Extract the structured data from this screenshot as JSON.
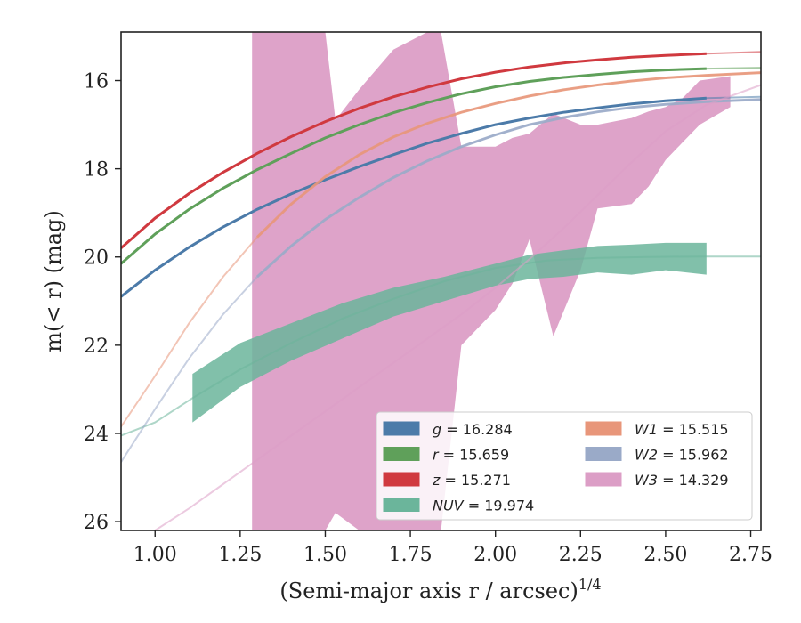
{
  "chart_data": {
    "type": "line",
    "xlabel": "(Semi-major axis r / arcsec)",
    "xlabel_superscript": "1/4",
    "ylabel": "m(< r) (mag)",
    "xlim": [
      0.9,
      2.78
    ],
    "ylim": [
      26.2,
      14.9
    ],
    "y_inverted": true,
    "xticks": [
      "1.00",
      "1.25",
      "1.50",
      "1.75",
      "2.00",
      "2.25",
      "2.50",
      "2.75"
    ],
    "xtick_values": [
      1.0,
      1.25,
      1.5,
      1.75,
      2.0,
      2.25,
      2.5,
      2.75
    ],
    "yticks": [
      "16",
      "18",
      "20",
      "22",
      "24",
      "26"
    ],
    "ytick_values": [
      16,
      18,
      20,
      22,
      24,
      26
    ],
    "grid": false,
    "legend_position": "lower-right",
    "series": [
      {
        "band": "g",
        "legend_value": "16.284",
        "color": "#4c7ba9",
        "x": [
          0.9,
          1.0,
          1.1,
          1.2,
          1.3,
          1.4,
          1.5,
          1.6,
          1.7,
          1.8,
          1.9,
          2.0,
          2.1,
          2.2,
          2.3,
          2.4,
          2.5,
          2.62,
          2.78
        ],
        "y": [
          20.9,
          20.3,
          19.78,
          19.32,
          18.92,
          18.57,
          18.25,
          17.95,
          17.68,
          17.42,
          17.2,
          17.0,
          16.85,
          16.72,
          16.62,
          16.53,
          16.46,
          16.4,
          16.37
        ],
        "measured_max_x": 2.62
      },
      {
        "band": "r",
        "legend_value": "15.659",
        "color": "#5fa05a",
        "x": [
          0.9,
          1.0,
          1.1,
          1.2,
          1.3,
          1.4,
          1.5,
          1.6,
          1.7,
          1.8,
          1.9,
          2.0,
          2.1,
          2.2,
          2.3,
          2.4,
          2.5,
          2.62,
          2.78
        ],
        "y": [
          20.15,
          19.48,
          18.92,
          18.44,
          18.02,
          17.65,
          17.3,
          17.0,
          16.73,
          16.5,
          16.3,
          16.14,
          16.02,
          15.93,
          15.86,
          15.8,
          15.76,
          15.73,
          15.71
        ],
        "measured_max_x": 2.62
      },
      {
        "band": "z",
        "legend_value": "15.271",
        "color": "#d0393f",
        "x": [
          0.9,
          1.0,
          1.1,
          1.2,
          1.3,
          1.4,
          1.5,
          1.6,
          1.7,
          1.8,
          1.9,
          2.0,
          2.1,
          2.2,
          2.3,
          2.4,
          2.5,
          2.62,
          2.78
        ],
        "y": [
          19.8,
          19.12,
          18.56,
          18.08,
          17.65,
          17.27,
          16.93,
          16.63,
          16.37,
          16.15,
          15.96,
          15.81,
          15.69,
          15.6,
          15.53,
          15.47,
          15.43,
          15.39,
          15.35
        ],
        "measured_max_x": 2.62
      },
      {
        "band": "NUV",
        "legend_value": "19.974",
        "color": "#6bb59b",
        "x": [
          0.9,
          1.0,
          1.11,
          1.25,
          1.4,
          1.55,
          1.7,
          1.85,
          2.0,
          2.15,
          2.3,
          2.45,
          2.62,
          2.78
        ],
        "y": [
          24.05,
          23.75,
          23.2,
          22.55,
          21.95,
          21.4,
          20.95,
          20.55,
          20.25,
          20.08,
          20.02,
          20.0,
          19.99,
          19.99
        ],
        "band_x": [
          1.11,
          1.25,
          1.4,
          1.55,
          1.7,
          1.85,
          2.0,
          2.1,
          2.2,
          2.3,
          2.4,
          2.5,
          2.62
        ],
        "band_lo": [
          23.75,
          22.95,
          22.35,
          21.85,
          21.35,
          21.0,
          20.65,
          20.5,
          20.45,
          20.35,
          20.4,
          20.3,
          20.4
        ],
        "band_hi": [
          22.65,
          21.95,
          21.5,
          21.05,
          20.7,
          20.45,
          20.15,
          19.95,
          19.85,
          19.75,
          19.72,
          19.68,
          19.68
        ],
        "measured_min_x": 1.11,
        "measured_max_x": 2.62
      },
      {
        "band": "W1",
        "legend_value": "15.515",
        "color": "#e8967a",
        "x": [
          0.9,
          1.0,
          1.1,
          1.2,
          1.3,
          1.4,
          1.5,
          1.6,
          1.7,
          1.8,
          1.9,
          2.0,
          2.1,
          2.2,
          2.3,
          2.4,
          2.5,
          2.62,
          2.78
        ],
        "y": [
          23.85,
          22.7,
          21.5,
          20.45,
          19.55,
          18.8,
          18.18,
          17.68,
          17.28,
          16.97,
          16.72,
          16.52,
          16.35,
          16.21,
          16.1,
          16.01,
          15.94,
          15.88,
          15.82
        ],
        "measured_min_x": 1.28,
        "measured_max_x": 2.78
      },
      {
        "band": "W2",
        "legend_value": "15.962",
        "color": "#9aaac8",
        "x": [
          0.9,
          1.0,
          1.1,
          1.2,
          1.3,
          1.4,
          1.5,
          1.6,
          1.7,
          1.8,
          1.9,
          2.0,
          2.1,
          2.2,
          2.3,
          2.4,
          2.5,
          2.62,
          2.78
        ],
        "y": [
          24.65,
          23.45,
          22.3,
          21.3,
          20.45,
          19.75,
          19.15,
          18.65,
          18.2,
          17.82,
          17.5,
          17.23,
          17.0,
          16.84,
          16.71,
          16.61,
          16.54,
          16.48,
          16.43
        ],
        "measured_min_x": 1.28,
        "measured_max_x": 2.78
      },
      {
        "band": "W3",
        "legend_value": "14.329",
        "color": "#dc9ec6",
        "x": [
          0.9,
          1.0,
          1.1,
          1.2,
          1.3,
          1.4,
          1.5,
          1.6,
          1.7,
          1.8,
          1.9,
          2.0,
          2.1,
          2.2,
          2.3,
          2.4,
          2.5,
          2.62,
          2.78
        ],
        "y": [
          26.4,
          26.2,
          25.7,
          25.15,
          24.6,
          24.05,
          23.5,
          22.95,
          22.4,
          21.85,
          21.3,
          20.7,
          20.05,
          19.35,
          18.6,
          17.85,
          17.15,
          16.55,
          16.1
        ],
        "band_x": [
          1.285,
          1.4,
          1.5,
          1.53,
          1.6,
          1.7,
          1.8,
          1.84,
          1.9,
          2.0,
          2.05,
          2.1,
          2.17,
          2.25,
          2.3,
          2.4,
          2.45,
          2.5,
          2.55,
          2.6,
          2.69
        ],
        "band_lo": [
          26.2,
          26.2,
          26.2,
          25.8,
          26.2,
          26.2,
          26.2,
          26.2,
          22.0,
          21.2,
          20.6,
          19.6,
          21.8,
          20.3,
          18.9,
          18.8,
          18.4,
          17.8,
          17.4,
          17.0,
          16.6
        ],
        "band_hi": [
          14.9,
          14.9,
          14.9,
          16.9,
          16.2,
          15.3,
          14.9,
          14.9,
          17.5,
          17.5,
          17.3,
          17.2,
          16.75,
          17.0,
          17.0,
          16.85,
          16.7,
          16.6,
          16.4,
          16.0,
          15.9
        ],
        "measured_min_x": 1.285,
        "measured_max_x": 2.69
      }
    ]
  },
  "legend": [
    {
      "name": "g",
      "value": "16.284",
      "color": "#4c7ba9"
    },
    {
      "name": "r",
      "value": "15.659",
      "color": "#5fa05a"
    },
    {
      "name": "z",
      "value": "15.271",
      "color": "#d0393f"
    },
    {
      "name": "NUV",
      "value": "19.974",
      "color": "#6bb59b"
    },
    {
      "name": "W1",
      "value": "15.515",
      "color": "#e8967a"
    },
    {
      "name": "W2",
      "value": "15.962",
      "color": "#9aaac8"
    },
    {
      "name": "W3",
      "value": "14.329",
      "color": "#dc9ec6"
    }
  ]
}
